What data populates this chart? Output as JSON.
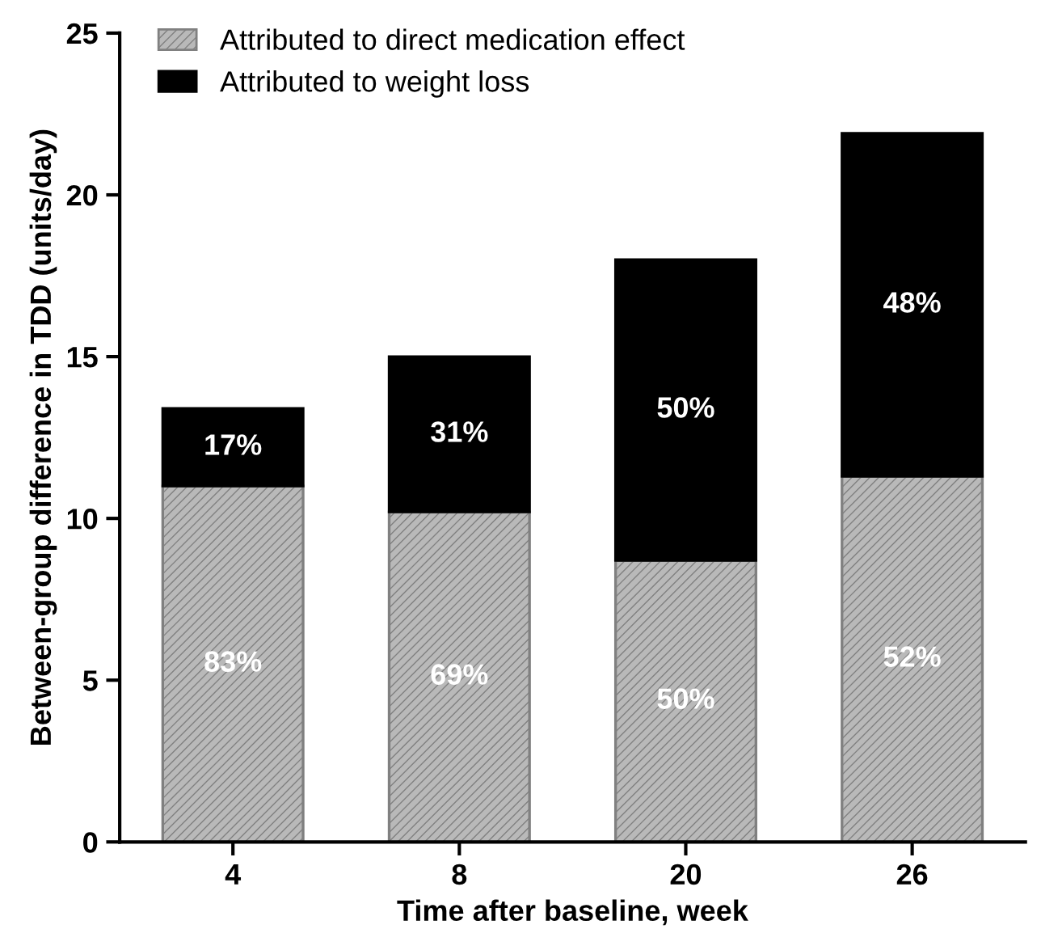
{
  "chart_data": {
    "type": "bar",
    "stacked": true,
    "xlabel": "Time after baseline, week",
    "ylabel": "Between-group difference in TDD (units/day)",
    "categories": [
      "4",
      "8",
      "20",
      "26"
    ],
    "series": [
      {
        "name": "Attributed to direct medication effect",
        "color": "#808080",
        "values": [
          11.0,
          10.2,
          8.7,
          11.3
        ]
      },
      {
        "name": "Attributed to weight loss",
        "color": "#000000",
        "values": [
          2.4,
          4.8,
          9.3,
          10.6
        ]
      }
    ],
    "annotations": [
      "83%",
      "69%",
      "50%",
      "52%",
      "17%",
      "31%",
      "50%",
      "48%"
    ],
    "ylim": [
      0,
      25
    ],
    "yticks": [
      0,
      5,
      10,
      15,
      20,
      25
    ],
    "grid": false,
    "legend": "top left"
  }
}
